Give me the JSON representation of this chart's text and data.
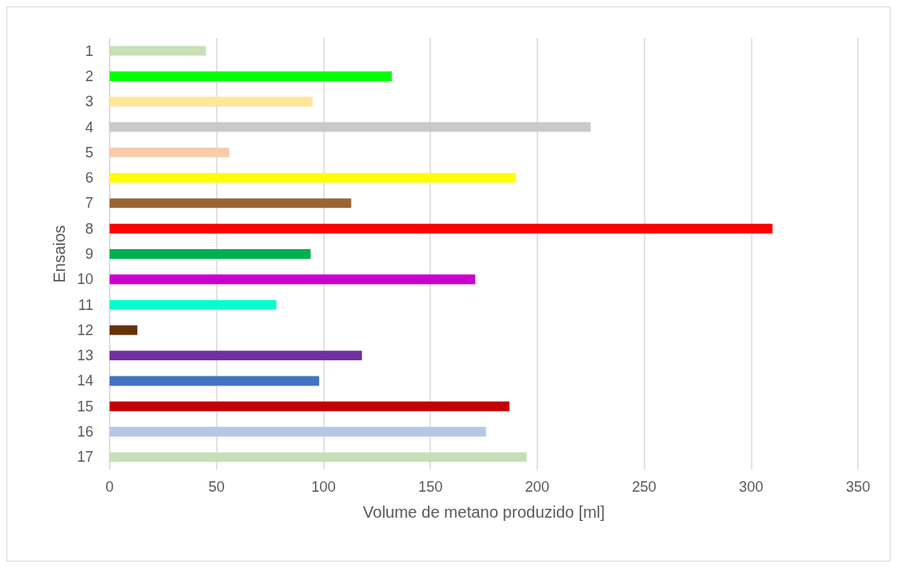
{
  "chart_data": {
    "type": "bar",
    "orientation": "horizontal",
    "xlabel": "Volume de metano produzido [ml]",
    "ylabel": "Ensaios",
    "categories": [
      "1",
      "2",
      "3",
      "4",
      "5",
      "6",
      "7",
      "8",
      "9",
      "10",
      "11",
      "12",
      "13",
      "14",
      "15",
      "16",
      "17"
    ],
    "values": [
      45,
      132,
      95,
      225,
      56,
      190,
      113,
      310,
      94,
      171,
      78,
      13,
      118,
      98,
      187,
      176,
      195
    ],
    "colors": [
      "#c5e0b4",
      "#00ff00",
      "#ffe699",
      "#c9c9c9",
      "#f8cbad",
      "#ffff00",
      "#996633",
      "#ff0000",
      "#00b050",
      "#cc00cc",
      "#00ffcc",
      "#663300",
      "#7030a0",
      "#4472c4",
      "#c00000",
      "#b4c7e7",
      "#c5e0b4"
    ],
    "xlim": [
      0,
      350
    ],
    "xticks": [
      0,
      50,
      100,
      150,
      200,
      250,
      300,
      350
    ],
    "grid": "x"
  }
}
